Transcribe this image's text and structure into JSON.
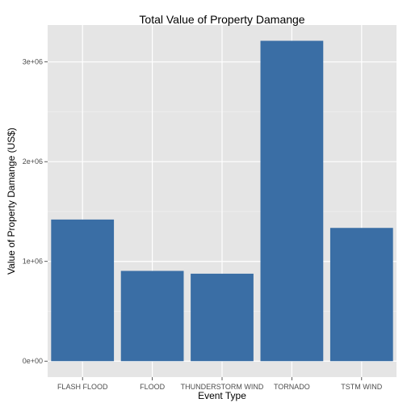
{
  "chart_data": {
    "type": "bar",
    "title": "Total Value of Property Damange",
    "xlabel": "Event Type",
    "ylabel": "Value of Property Damange (US$)",
    "categories": [
      "FLASH FLOOD",
      "FLOOD",
      "THUNDERSTORM WIND",
      "TORNADO",
      "TSTM WIND"
    ],
    "values": [
      1420000,
      905000,
      877000,
      3212000,
      1336000
    ],
    "ylim": [
      -160000,
      3370000
    ],
    "yticks": [
      0,
      1000000,
      2000000,
      3000000
    ],
    "ytick_labels": [
      "0e+00",
      "1e+06",
      "2e+06",
      "3e+06"
    ],
    "grid": true,
    "colors": {
      "bar": "#3a6ea5",
      "panel": "#e5e5e5",
      "grid_major": "#ffffff",
      "grid_minor": "#f2f2f2"
    }
  }
}
